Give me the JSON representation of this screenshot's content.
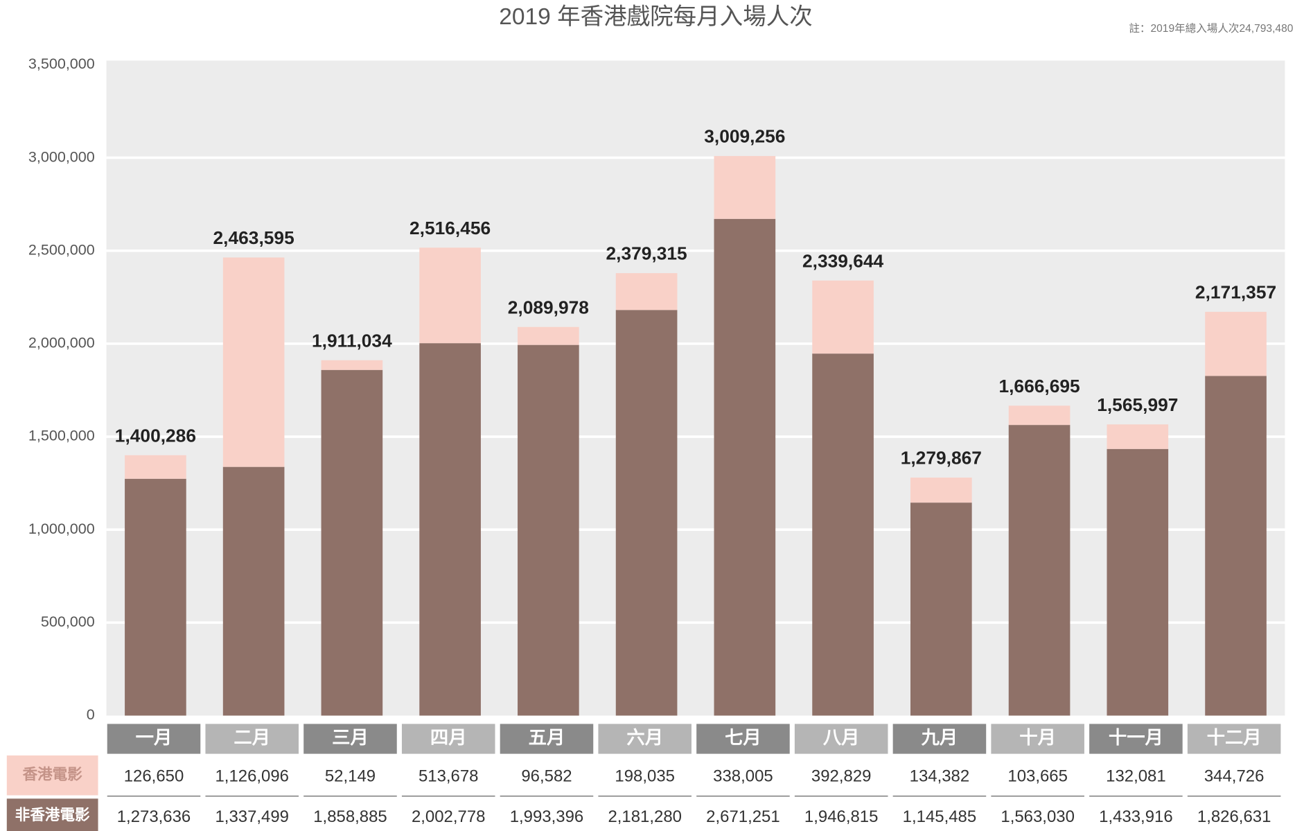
{
  "chart_data": {
    "type": "stacked_bar",
    "title": "2019 年香港戲院每月入場人次",
    "annotation": "註：2019年總入場人次24,793,480",
    "categories": [
      "一月",
      "二月",
      "三月",
      "四月",
      "五月",
      "六月",
      "七月",
      "八月",
      "九月",
      "十月",
      "十一月",
      "十二月"
    ],
    "series": [
      {
        "name": "香港電影",
        "color": "#f9d1c8",
        "values": [
          126650,
          1126096,
          52149,
          513678,
          96582,
          198035,
          338005,
          392829,
          134382,
          103665,
          132081,
          344726
        ],
        "value_labels": [
          "126,650",
          "1,126,096",
          "52,149",
          "513,678",
          "96,582",
          "198,035",
          "338,005",
          "392,829",
          "134,382",
          "103,665",
          "132,081",
          "344,726"
        ]
      },
      {
        "name": "非香港電影",
        "color": "#8f7168",
        "values": [
          1273636,
          1337499,
          1858885,
          2002778,
          1993396,
          2181280,
          2671251,
          1946815,
          1145485,
          1563030,
          1433916,
          1826631
        ],
        "value_labels": [
          "1,273,636",
          "1,337,499",
          "1,858,885",
          "2,002,778",
          "1,993,396",
          "2,181,280",
          "2,671,251",
          "1,946,815",
          "1,145,485",
          "1,563,030",
          "1,433,916",
          "1,826,631"
        ]
      }
    ],
    "totals": {
      "values": [
        1400286,
        2463595,
        1911034,
        2516456,
        2089978,
        2379315,
        3009256,
        2339644,
        1279867,
        1666695,
        1565997,
        2171357
      ],
      "value_labels": [
        "1,400,286",
        "2,463,595",
        "1,911,034",
        "2,516,456",
        "2,089,978",
        "2,379,315",
        "3,009,256",
        "2,339,644",
        "1,279,867",
        "1,666,695",
        "1,565,997",
        "2,171,357"
      ]
    },
    "ylim": [
      0,
      3500000
    ],
    "yticks": [
      0,
      {
        "value": 500000,
        "label": "500,000"
      },
      {
        "value": 1000000,
        "label": "1,000,000"
      },
      {
        "value": 1500000,
        "label": "1,500,000"
      },
      {
        "value": 2000000,
        "label": "2,000,000"
      },
      {
        "value": 2500000,
        "label": "2,500,000"
      },
      {
        "value": 3000000,
        "label": "3,000,000"
      },
      {
        "value": 3500000,
        "label": "3,500,000"
      }
    ],
    "grid": true
  }
}
